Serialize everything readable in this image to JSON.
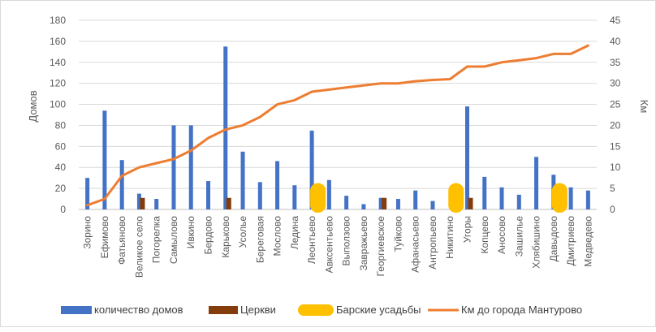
{
  "chart_data": {
    "type": "bar",
    "title": "",
    "ylabel": "Домов",
    "y2label": "Км",
    "ylim": [
      0,
      180
    ],
    "yticks": [
      0,
      20,
      40,
      60,
      80,
      100,
      120,
      140,
      160,
      180
    ],
    "y2lim": [
      0,
      45
    ],
    "y2ticks": [
      0,
      5,
      10,
      15,
      20,
      25,
      30,
      35,
      40,
      45
    ],
    "grid": true,
    "legend_position": "bottom",
    "categories": [
      "Зорино",
      "Ефимово",
      "Фатьяново",
      "Великое село",
      "Погорелка",
      "Самылово",
      "Ивкино",
      "Бердово",
      "Карьково",
      "Усолье",
      "Береговая",
      "Мослово",
      "Ледина",
      "Леонтьево",
      "Авксентьево",
      "Выползово",
      "Завражьево",
      "Георгиевское",
      "Туйково",
      "Афанасьево",
      "Антропьево",
      "Никитино",
      "Угоры",
      "Копцево",
      "Аносово",
      "Зашилье",
      "Хлябишино",
      "Давыдово",
      "Дмитриево",
      "Медведево"
    ],
    "series": [
      {
        "name": "количество домов",
        "kind": "bar",
        "axis": "left",
        "color": "#4472C4",
        "values": [
          30,
          94,
          47,
          15,
          10,
          80,
          80,
          27,
          155,
          55,
          26,
          46,
          23,
          75,
          28,
          13,
          5,
          11,
          10,
          18,
          8,
          0,
          98,
          31,
          21,
          14,
          50,
          33,
          21,
          18
        ]
      },
      {
        "name": "Церкви",
        "kind": "bar",
        "axis": "left",
        "color": "#843C0C",
        "values": [
          0,
          0,
          0,
          11,
          0,
          0,
          0,
          0,
          11,
          0,
          0,
          0,
          0,
          0,
          0,
          0,
          0,
          11,
          0,
          0,
          0,
          0,
          11,
          0,
          0,
          0,
          0,
          0,
          0,
          0
        ]
      },
      {
        "name": "Барские усадьбы",
        "kind": "bar",
        "axis": "left",
        "color": "#FFC000",
        "values": [
          0,
          0,
          0,
          0,
          0,
          0,
          0,
          0,
          0,
          0,
          0,
          0,
          0,
          25,
          0,
          0,
          0,
          0,
          0,
          0,
          0,
          25,
          0,
          0,
          0,
          0,
          0,
          25,
          0,
          0
        ]
      },
      {
        "name": "Км до города Мантурово",
        "kind": "line",
        "axis": "right",
        "color": "#ED7D31",
        "values": [
          1,
          2.5,
          8,
          10,
          11,
          12,
          14,
          17,
          19,
          20,
          22,
          25,
          26,
          28,
          28.5,
          29,
          29.5,
          30,
          30,
          30.5,
          30.8,
          31,
          34,
          34,
          35,
          35.5,
          36,
          37,
          37,
          39
        ]
      }
    ]
  }
}
